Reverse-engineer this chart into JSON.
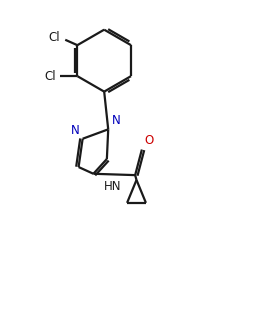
{
  "bg_color": "#ffffff",
  "line_color": "#1a1a1a",
  "atom_color_N": "#0000bb",
  "atom_color_O": "#cc0000",
  "line_width": 1.6,
  "figsize": [
    2.73,
    3.26
  ],
  "dpi": 100,
  "xlim": [
    0,
    10
  ],
  "ylim": [
    0,
    12
  ]
}
